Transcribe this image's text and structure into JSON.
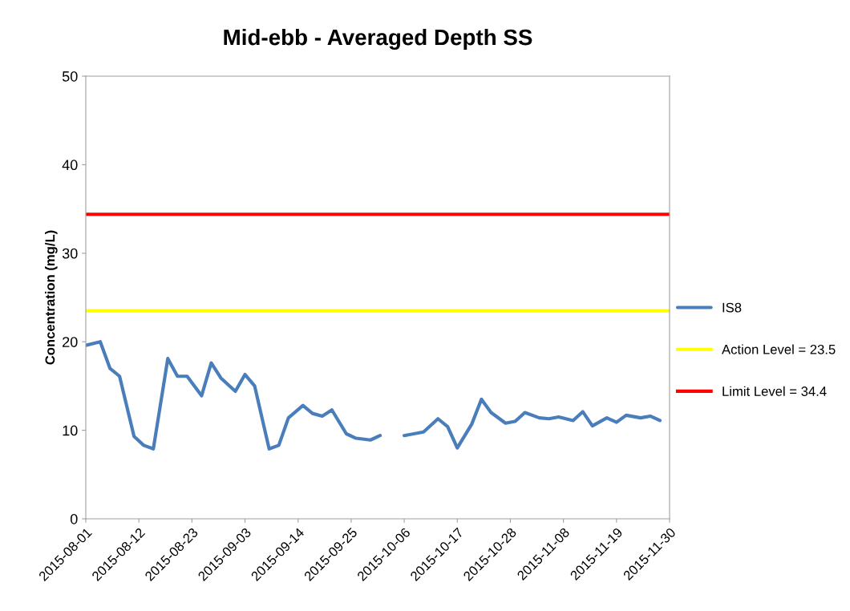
{
  "chart_data": {
    "type": "line",
    "title": "Mid-ebb - Averaged Depth SS",
    "ylabel": "Concentration (mg/L)",
    "x": [
      "2015-08-01",
      "2015-08-04",
      "2015-08-06",
      "2015-08-08",
      "2015-08-11",
      "2015-08-13",
      "2015-08-15",
      "2015-08-18",
      "2015-08-20",
      "2015-08-22",
      "2015-08-25",
      "2015-08-27",
      "2015-08-29",
      "2015-09-01",
      "2015-09-03",
      "2015-09-05",
      "2015-09-08",
      "2015-09-10",
      "2015-09-12",
      "2015-09-15",
      "2015-09-17",
      "2015-09-19",
      "2015-09-21",
      "2015-09-24",
      "2015-09-26",
      "2015-09-29",
      "2015-10-01",
      "2015-10-03",
      "2015-10-06",
      "2015-10-10",
      "2015-10-13",
      "2015-10-15",
      "2015-10-17",
      "2015-10-20",
      "2015-10-22",
      "2015-10-24",
      "2015-10-27",
      "2015-10-29",
      "2015-10-31",
      "2015-11-03",
      "2015-11-05",
      "2015-11-07",
      "2015-11-10",
      "2015-11-12",
      "2015-11-14",
      "2015-11-17",
      "2015-11-19",
      "2015-11-21",
      "2015-11-24",
      "2015-11-26",
      "2015-11-28"
    ],
    "series": [
      {
        "name": "IS8",
        "color": "#4a7ebb",
        "values": [
          19.6,
          20.0,
          17.0,
          16.1,
          9.3,
          8.3,
          7.9,
          18.1,
          16.1,
          16.1,
          13.9,
          17.6,
          15.9,
          14.4,
          16.3,
          15.0,
          7.9,
          8.3,
          11.4,
          12.8,
          11.9,
          11.6,
          12.3,
          9.6,
          9.1,
          8.9,
          9.4,
          null,
          9.4,
          9.8,
          11.3,
          10.4,
          8.0,
          10.7,
          13.5,
          12.0,
          10.8,
          11.0,
          12.0,
          11.4,
          11.3,
          11.5,
          11.1,
          12.1,
          10.5,
          11.4,
          10.9,
          11.7,
          11.4,
          11.6,
          11.1
        ]
      }
    ],
    "ref_lines": [
      {
        "axis": "y",
        "value": 23.5,
        "label": "Action Level = 23.5",
        "color": "#ffff00"
      },
      {
        "axis": "y",
        "value": 34.4,
        "label": "Limit Level = 34.4",
        "color": "#ff0000"
      }
    ],
    "xlim": [
      "2015-08-01",
      "2015-11-30"
    ],
    "xticks": [
      "2015-08-01",
      "2015-08-12",
      "2015-08-23",
      "2015-09-03",
      "2015-09-14",
      "2015-09-25",
      "2015-10-06",
      "2015-10-17",
      "2015-10-28",
      "2015-11-08",
      "2015-11-19",
      "2015-11-30"
    ],
    "ylim": [
      0,
      50
    ],
    "yticks": [
      0,
      10,
      20,
      30,
      40,
      50
    ],
    "grid": false,
    "legend": "right",
    "marker": "none",
    "line_style": "solid"
  }
}
